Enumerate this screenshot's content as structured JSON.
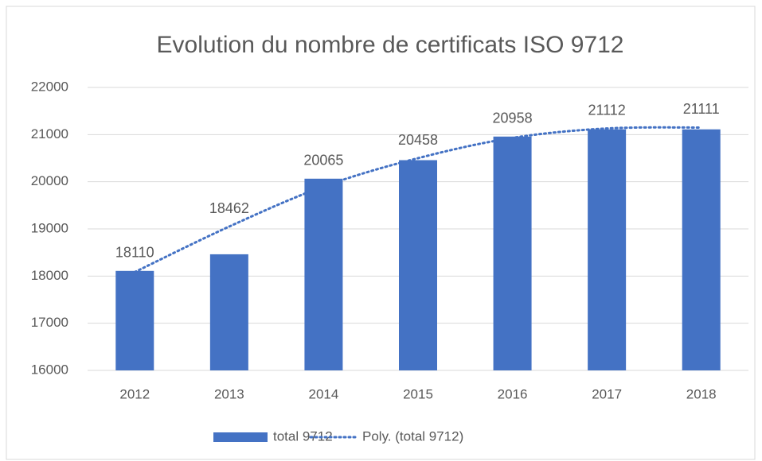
{
  "chart_data": {
    "type": "bar",
    "title": "Evolution du nombre de certificats ISO 9712",
    "categories": [
      "2012",
      "2013",
      "2014",
      "2015",
      "2016",
      "2017",
      "2018"
    ],
    "series": [
      {
        "name": "total 9712",
        "color": "#4472c4",
        "values": [
          18110,
          18462,
          20065,
          20458,
          20958,
          21112,
          21111
        ]
      },
      {
        "name": "Poly. (total 9712)",
        "color": "#4472c4",
        "line": "dotted",
        "values": [
          18085,
          19050,
          19900,
          20500,
          20930,
          21130,
          21150
        ]
      }
    ],
    "ylim": [
      16000,
      22000
    ],
    "yticks": [
      16000,
      17000,
      18000,
      19000,
      20000,
      21000,
      22000
    ],
    "grid": true,
    "legend": "bottom"
  }
}
